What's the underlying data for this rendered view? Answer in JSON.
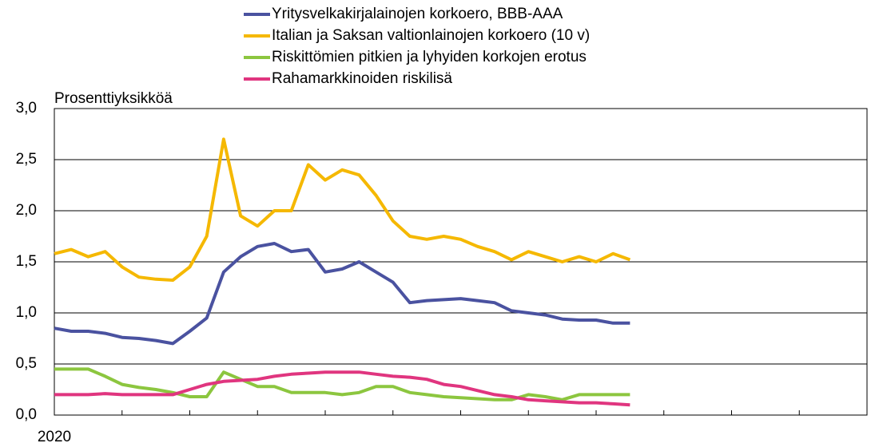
{
  "chart_data": {
    "type": "line",
    "ylabel": "Prosenttiyksikköä",
    "categories": [
      "2020",
      null,
      null,
      null,
      null,
      null,
      null,
      null,
      null,
      null,
      null,
      null,
      null,
      null,
      null,
      null,
      null,
      null,
      null,
      null,
      null,
      null,
      null,
      null,
      null,
      null,
      null,
      null,
      null,
      null,
      null,
      null,
      null,
      null,
      null,
      null,
      null,
      null,
      null,
      null,
      null,
      null,
      null,
      null,
      null,
      null,
      null,
      null,
      null
    ],
    "ylim": [
      0,
      3
    ],
    "yticks": [
      {
        "value": 0,
        "label": "0,0"
      },
      {
        "value": 0.5,
        "label": "0,5"
      },
      {
        "value": 1,
        "label": "1,0"
      },
      {
        "value": 1.5,
        "label": "1,5"
      },
      {
        "value": 2,
        "label": "2,0"
      },
      {
        "value": 2.5,
        "label": "2,5"
      },
      {
        "value": 3,
        "label": "3,0"
      }
    ],
    "grid": true,
    "legend": "top",
    "series": [
      {
        "name": "Yritysvelkakirjalainojen korkoero, BBB-AAA",
        "color": "#4a52a0",
        "values": [
          0.85,
          0.82,
          0.82,
          0.8,
          0.76,
          0.75,
          0.73,
          0.7,
          0.82,
          0.95,
          1.4,
          1.55,
          1.65,
          1.68,
          1.6,
          1.62,
          1.4,
          1.43,
          1.5,
          1.4,
          1.3,
          1.1,
          1.12,
          1.13,
          1.14,
          1.12,
          1.1,
          1.02,
          1.0,
          0.98,
          0.94,
          0.93,
          0.93,
          0.9,
          0.9,
          null,
          null,
          null,
          null,
          null,
          null,
          null,
          null,
          null,
          null,
          null,
          null,
          null,
          null
        ]
      },
      {
        "name": "Italian ja Saksan valtionlainojen korkoero (10 v)",
        "color": "#f5b800",
        "values": [
          1.58,
          1.62,
          1.55,
          1.6,
          1.45,
          1.35,
          1.33,
          1.32,
          1.45,
          1.75,
          2.7,
          1.95,
          1.85,
          2.0,
          2.0,
          2.45,
          2.3,
          2.4,
          2.35,
          2.15,
          1.9,
          1.75,
          1.72,
          1.75,
          1.72,
          1.65,
          1.6,
          1.52,
          1.6,
          1.55,
          1.5,
          1.55,
          1.5,
          1.58,
          1.52,
          null,
          null,
          null,
          null,
          null,
          null,
          null,
          null,
          null,
          null,
          null,
          null,
          null,
          null
        ]
      },
      {
        "name": "Riskittömien pitkien ja lyhyiden korkojen erotus",
        "color": "#8cc63f",
        "values": [
          0.45,
          0.45,
          0.45,
          0.38,
          0.3,
          0.27,
          0.25,
          0.22,
          0.18,
          0.18,
          0.42,
          0.35,
          0.28,
          0.28,
          0.22,
          0.22,
          0.22,
          0.2,
          0.22,
          0.28,
          0.28,
          0.22,
          0.2,
          0.18,
          0.17,
          0.16,
          0.15,
          0.15,
          0.2,
          0.18,
          0.15,
          0.2,
          0.2,
          0.2,
          0.2,
          null,
          null,
          null,
          null,
          null,
          null,
          null,
          null,
          null,
          null,
          null,
          null,
          null,
          null
        ]
      },
      {
        "name": "Rahamarkkinoiden riskilisä",
        "color": "#e0357f",
        "values": [
          0.2,
          0.2,
          0.2,
          0.21,
          0.2,
          0.2,
          0.2,
          0.2,
          0.25,
          0.3,
          0.33,
          0.34,
          0.35,
          0.38,
          0.4,
          0.41,
          0.42,
          0.42,
          0.42,
          0.4,
          0.38,
          0.37,
          0.35,
          0.3,
          0.28,
          0.24,
          0.2,
          0.18,
          0.15,
          0.14,
          0.13,
          0.12,
          0.12,
          0.11,
          0.1,
          null,
          null,
          null,
          null,
          null,
          null,
          null,
          null,
          null,
          null,
          null,
          null,
          null,
          null
        ]
      }
    ]
  }
}
